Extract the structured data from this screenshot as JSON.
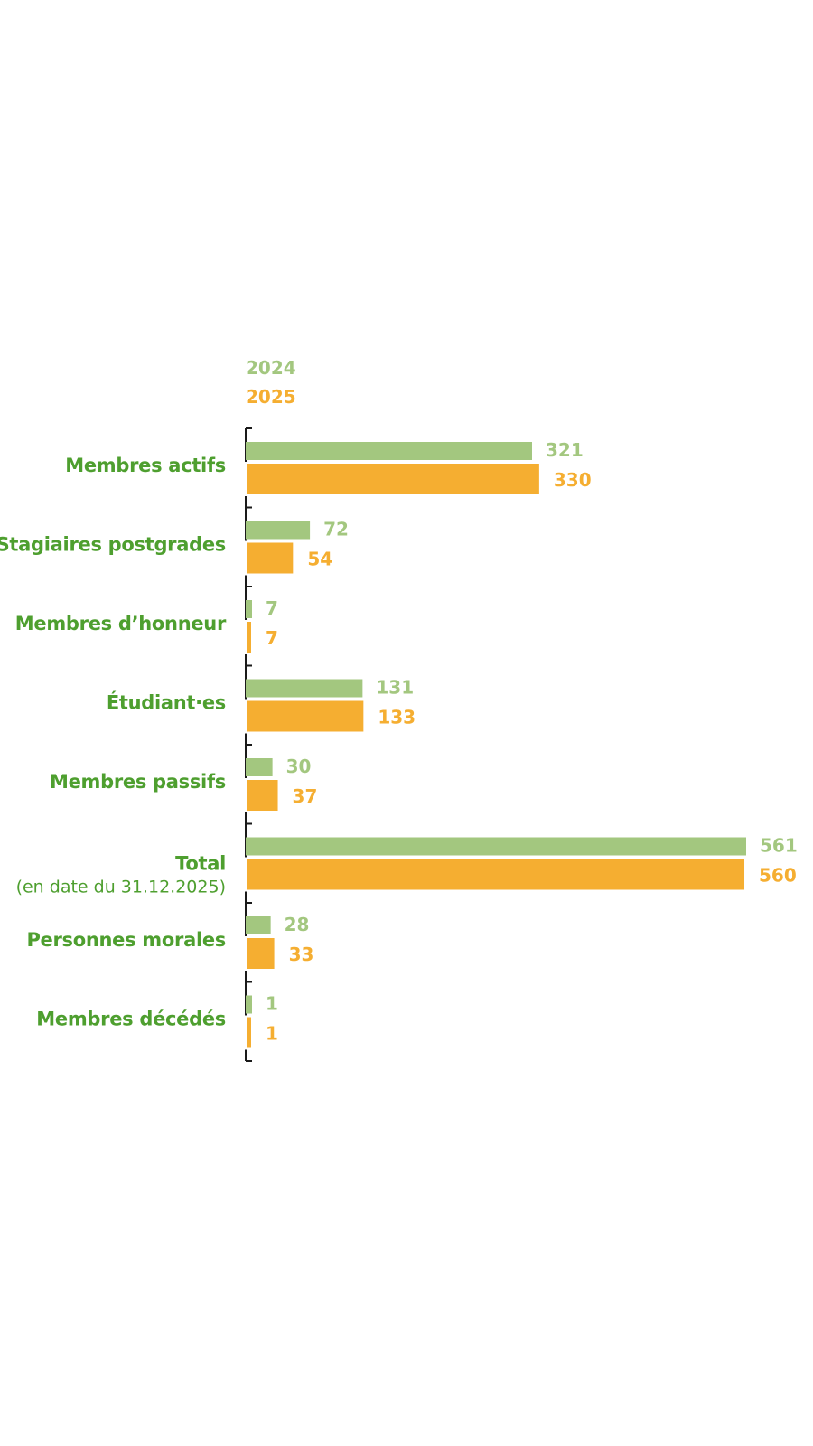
{
  "colors": {
    "series_2024": "#a3c77f",
    "series_2025": "#f5ae31",
    "label": "#4e9f2f",
    "axis": "#1a1a1a"
  },
  "chart_data": {
    "type": "bar",
    "orientation": "horizontal",
    "title": "",
    "xlabel": "",
    "ylabel": "",
    "grid": false,
    "legend_position": "top-left",
    "xlim": [
      0,
      561
    ],
    "categories": [
      "Membres actifs",
      "Stagiaires postgrades",
      "Membres d’honneur",
      "Étudiant·es",
      "Membres passifs",
      "Total",
      "Personnes morales",
      "Membres décédés"
    ],
    "category_notes": [
      "",
      "",
      "",
      "",
      "",
      "(en date du 31.12.2025)",
      "",
      ""
    ],
    "series": [
      {
        "name": "2024",
        "values": [
          321,
          72,
          7,
          131,
          30,
          561,
          28,
          1
        ]
      },
      {
        "name": "2025",
        "values": [
          330,
          54,
          7,
          133,
          37,
          560,
          33,
          1
        ]
      }
    ]
  }
}
